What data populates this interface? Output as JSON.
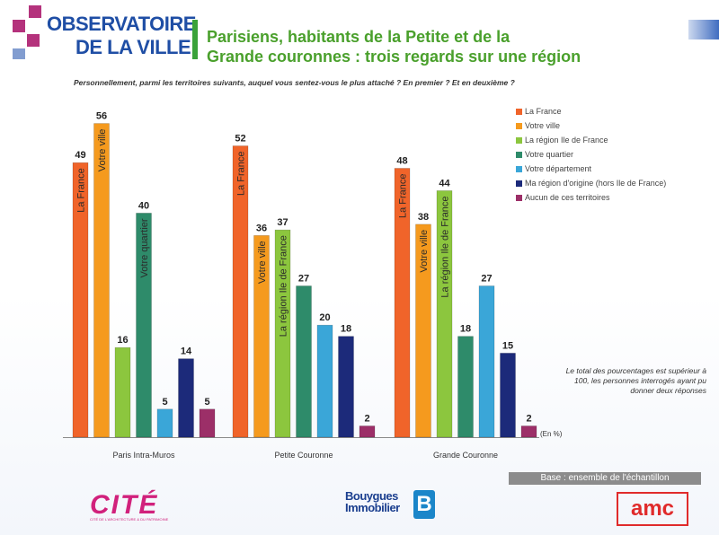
{
  "header": {
    "logo_line1": "OBSERVATOIRE",
    "logo_line2": "DE LA VILLE",
    "title_line1": "Parisiens, habitants de la Petite et de la",
    "title_line2": "Grande couronnes : trois regards sur une région"
  },
  "question": "Personnellement, parmi les territoires suivants, auquel vous sentez-vous le plus attaché ? En premier ? Et en deuxième ?",
  "note": "Le total des pourcentages est supérieur à 100, les personnes interrogés ayant pu donner deux réponses",
  "unit_label": "(En %)",
  "base": "Base : ensemble de l'échantillon",
  "logos": {
    "cite": "CITÉ",
    "cite_sub": "CITÉ DE L'ARCHITECTURE & DU PATRIMOINE",
    "bouygues_line1": "Bouygues",
    "bouygues_line2": "Immobilier",
    "bouygues_mark": "B",
    "amc": "amc"
  },
  "colors": {
    "france": "#f0642a",
    "ville": "#f59a1e",
    "region": "#8cc63e",
    "quartier": "#2e8b6a",
    "departement": "#3aa6d8",
    "origine": "#1c2a7a",
    "aucun": "#9c2f68"
  },
  "chart_data": {
    "type": "bar",
    "title": "Parisiens, habitants de la Petite et de la Grande couronnes : trois regards sur une région",
    "categories": [
      "Paris Intra-Muros",
      "Petite Couronne",
      "Grande Couronne"
    ],
    "ylabel": "",
    "unit": "%",
    "ylim": [
      0,
      60
    ],
    "grid": false,
    "legend": "right",
    "series": [
      {
        "name": "La France",
        "values": [
          49,
          52,
          48
        ],
        "inbar_label": [
          "La France",
          "La France",
          "La France"
        ]
      },
      {
        "name": "Votre ville",
        "values": [
          56,
          36,
          38
        ],
        "inbar_label": [
          "Votre ville",
          "Votre ville",
          "Votre ville"
        ]
      },
      {
        "name": "La région Ile de France",
        "values": [
          16,
          37,
          44
        ],
        "inbar_label": [
          "",
          "La région Ile de France",
          "La région Ile de France"
        ]
      },
      {
        "name": "Votre quartier",
        "values": [
          40,
          27,
          18
        ],
        "inbar_label": [
          "Votre quartier",
          "",
          ""
        ]
      },
      {
        "name": "Votre département",
        "values": [
          5,
          20,
          27
        ],
        "inbar_label": [
          "",
          "",
          ""
        ]
      },
      {
        "name": "Ma région d'origine (hors Ile de France)",
        "values": [
          14,
          18,
          15
        ],
        "inbar_label": [
          "",
          "",
          ""
        ]
      },
      {
        "name": "Aucun de ces territoires",
        "values": [
          5,
          2,
          2
        ],
        "inbar_label": [
          "",
          "",
          ""
        ]
      }
    ]
  }
}
